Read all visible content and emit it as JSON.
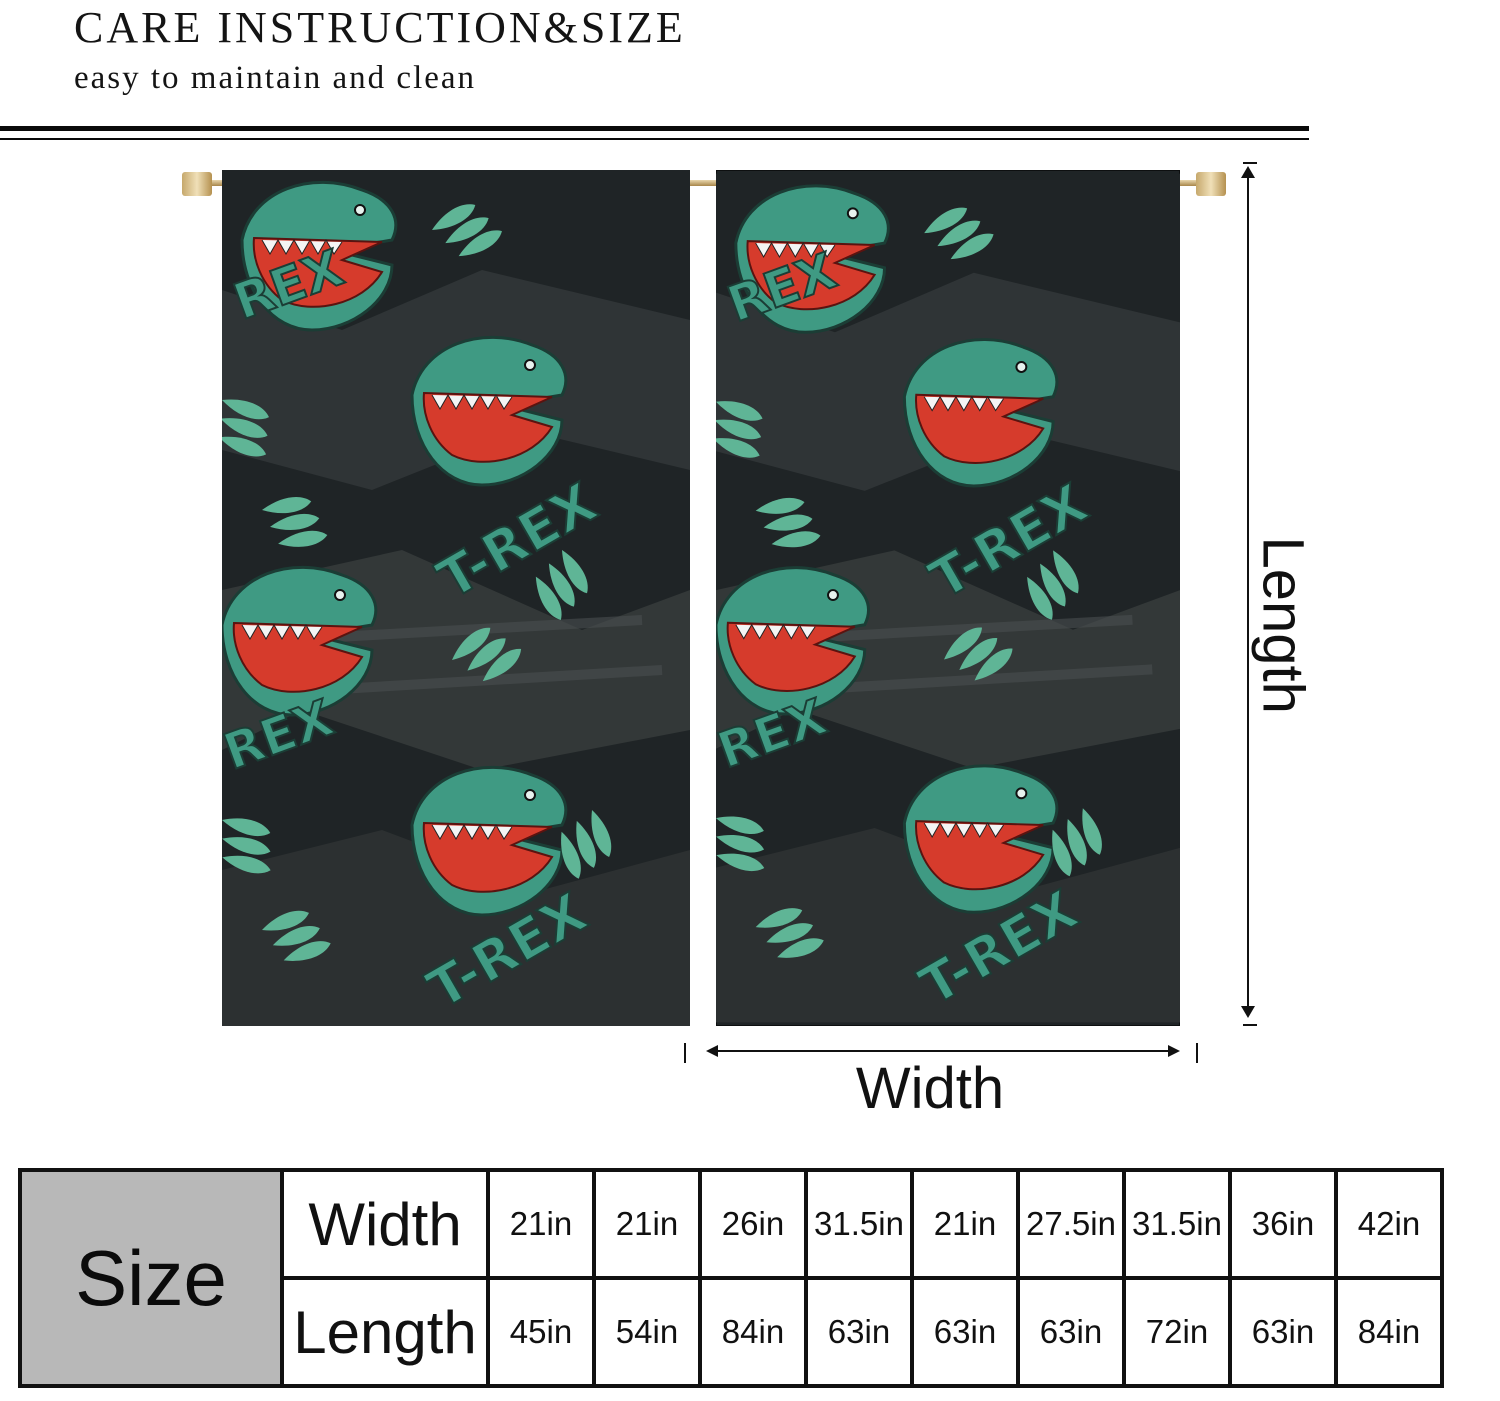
{
  "header": {
    "title": "CARE INSTRUCTION&SIZE",
    "subtitle": "easy to maintain and clean"
  },
  "diagram": {
    "length_label": "Length",
    "width_label": "Width",
    "curtain_pattern": {
      "text": "T-REX",
      "background": "#1f2426",
      "dino_green": "#3f9a83",
      "leaf_green": "#5fb596",
      "mouth_red": "#d63b2c"
    }
  },
  "size_table": {
    "header": "Size",
    "rows": [
      {
        "label": "Width",
        "values": [
          "21in",
          "21in",
          "26in",
          "31.5in",
          "21in",
          "27.5in",
          "31.5in",
          "36in",
          "42in"
        ]
      },
      {
        "label": "Length",
        "values": [
          "45in",
          "54in",
          "84in",
          "63in",
          "63in",
          "63in",
          "72in",
          "63in",
          "84in"
        ]
      }
    ]
  }
}
